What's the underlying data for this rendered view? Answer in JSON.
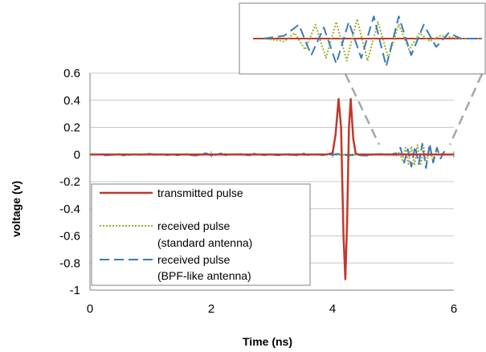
{
  "chart_data": {
    "type": "line",
    "xlabel": "Time (ns)",
    "ylabel": "voltage  (v)",
    "xlim": [
      0,
      6
    ],
    "ylim": [
      -1,
      0.6
    ],
    "xticks": [
      0,
      2,
      4,
      6
    ],
    "yticks": [
      0.6,
      0.4,
      0.2,
      0,
      -0.2,
      -0.4,
      -0.6,
      -0.8,
      -1
    ],
    "ytick_labels": [
      "0.6",
      "0.4",
      "0.2",
      "0",
      "-0.2",
      "-0.4",
      "-0.6",
      "-0.8",
      "-1"
    ],
    "xtick_labels": [
      "0",
      "2",
      "4",
      "6"
    ],
    "grid": "horizontal",
    "legend_position": "bottom-left",
    "inset": "zoomed view of received pulses, top-right",
    "series": [
      {
        "name": "transmitted pulse",
        "color": "#c0392b",
        "style": "solid",
        "x": [
          0,
          3.9,
          4.0,
          4.05,
          4.1,
          4.14,
          4.18,
          4.21,
          4.24,
          4.27,
          4.3,
          4.34,
          4.38,
          4.42,
          4.5,
          6
        ],
        "y": [
          0,
          0,
          0.01,
          0.15,
          0.41,
          0.2,
          -0.6,
          -0.92,
          -0.5,
          0.2,
          0.41,
          0.12,
          0.01,
          0,
          0,
          0
        ]
      },
      {
        "name": "received pulse (standard antenna)",
        "color": "#9aae2b",
        "style": "dotted",
        "x": [
          0,
          4.95,
          5.05,
          5.1,
          5.15,
          5.2,
          5.25,
          5.3,
          5.35,
          5.4,
          5.45,
          5.5,
          5.55,
          5.6,
          5.65,
          5.7,
          5.75,
          5.8,
          5.9,
          6
        ],
        "y": [
          0,
          0,
          -0.01,
          0.02,
          -0.04,
          0.05,
          -0.07,
          0.06,
          -0.08,
          0.07,
          -0.08,
          0.06,
          -0.07,
          0.05,
          -0.04,
          0.02,
          -0.01,
          0.01,
          0,
          0
        ]
      },
      {
        "name": "received pulse (BPF-like antenna)",
        "color": "#3a79c0",
        "style": "dashed",
        "x": [
          0,
          4.95,
          5.05,
          5.12,
          5.18,
          5.24,
          5.3,
          5.36,
          5.42,
          5.48,
          5.54,
          5.6,
          5.66,
          5.72,
          5.78,
          5.84,
          5.9,
          6
        ],
        "y": [
          0,
          0,
          0.01,
          0.05,
          -0.06,
          0.04,
          -0.09,
          0.06,
          -0.07,
          0.08,
          -0.1,
          0.08,
          -0.06,
          0.05,
          -0.03,
          0.02,
          0,
          0
        ]
      }
    ]
  },
  "legend": {
    "items": [
      {
        "label_lines": [
          "transmitted pulse"
        ]
      },
      {
        "label_lines": [
          "received pulse",
          "(standard antenna)"
        ]
      },
      {
        "label_lines": [
          "received pulse",
          "(BPF-like antenna)"
        ]
      }
    ]
  }
}
